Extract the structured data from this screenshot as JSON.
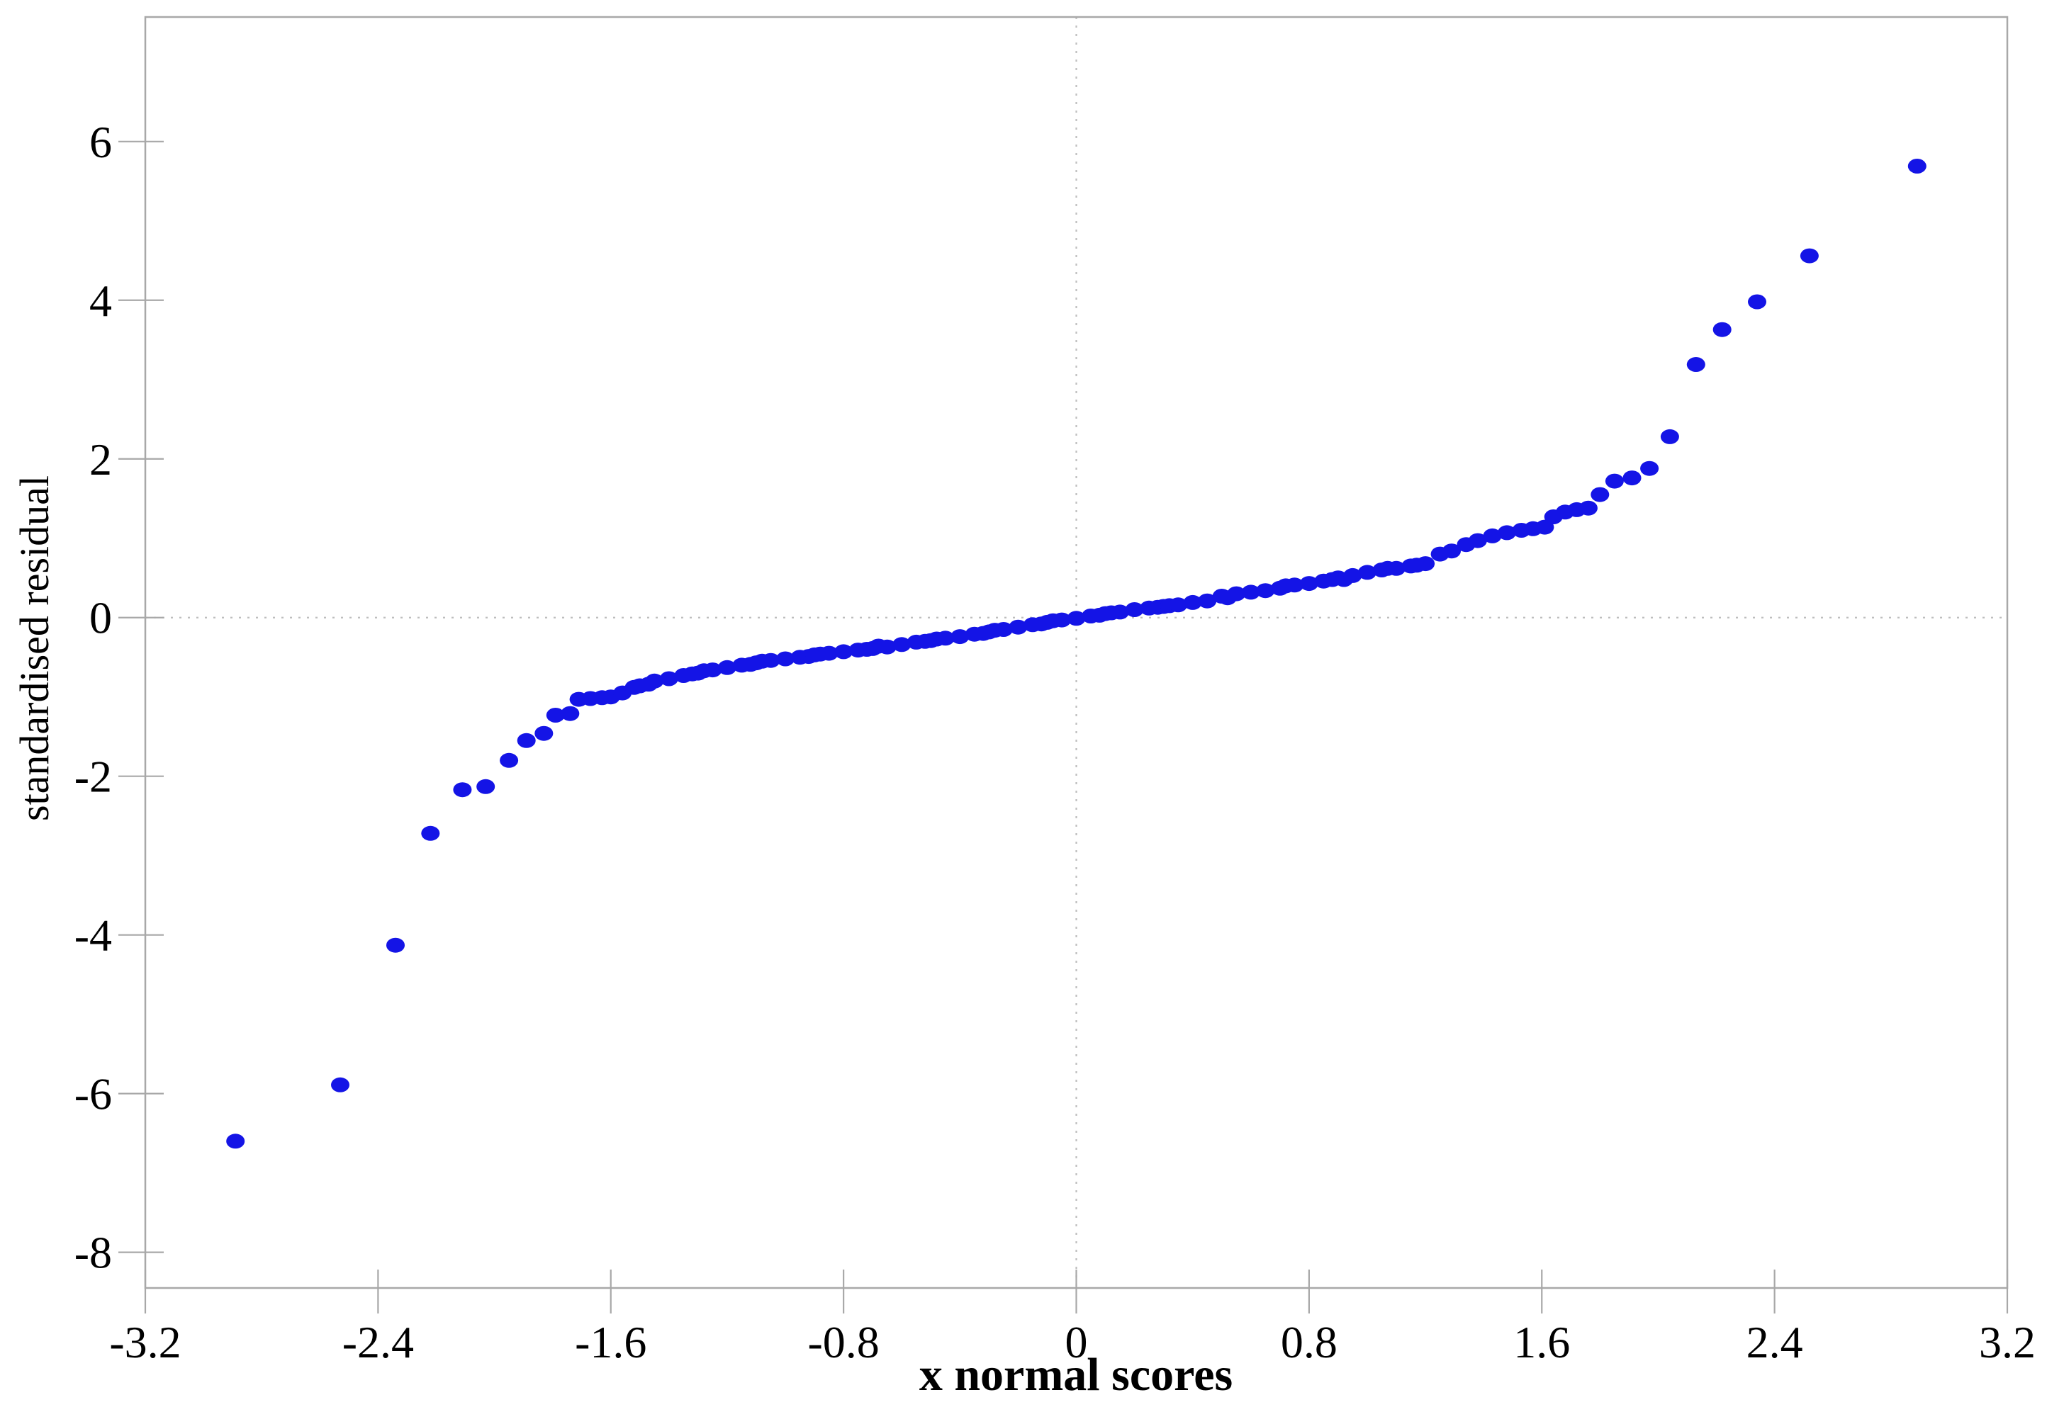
{
  "figure": {
    "background": "#ffffff"
  },
  "chart_data": {
    "type": "scatter",
    "title": "",
    "xlabel": "x normal scores",
    "ylabel": "standardised residual",
    "xlim": [
      -3.2,
      3.2
    ],
    "ylim": [
      -8.45,
      7.57
    ],
    "x_tick_values": [
      -3.2,
      -2.4,
      -1.6,
      -0.8,
      0,
      0.8,
      1.6,
      2.4,
      3.2
    ],
    "x_tick_labels": [
      "-3.2",
      "-2.4",
      "-1.6",
      "-0.8",
      "0",
      "0.8",
      "1.6",
      "2.4",
      "3.2"
    ],
    "y_tick_values": [
      -8,
      -6,
      -4,
      -2,
      0,
      2,
      4,
      6
    ],
    "y_tick_labels": [
      "-8",
      "-6",
      "-4",
      "-2",
      "0",
      "2",
      "4",
      "6"
    ],
    "zero_lines": {
      "x": 0,
      "y": 0
    },
    "grid": false,
    "legend": null,
    "marker": {
      "shape": "ellipse",
      "color": "#1414e6",
      "rx": 13,
      "ry": 10.5
    },
    "axis_color": "#a8a8a8",
    "zero_line_color": "#bdbdbd",
    "label_color": "#000000",
    "points": [
      [
        -2.89,
        -6.6
      ],
      [
        -2.53,
        -5.89
      ],
      [
        -2.34,
        -4.13
      ],
      [
        -2.22,
        -2.72
      ],
      [
        -2.11,
        -2.17
      ],
      [
        -2.03,
        -2.13
      ],
      [
        -1.95,
        -1.8
      ],
      [
        -1.89,
        -1.55
      ],
      [
        -1.83,
        -1.46
      ],
      [
        -1.79,
        -1.23
      ],
      [
        -1.74,
        -1.21
      ],
      [
        -1.71,
        -1.03
      ],
      [
        -1.67,
        -1.02
      ],
      [
        -1.63,
        -1.01
      ],
      [
        -1.6,
        -1.0
      ],
      [
        -1.56,
        -0.95
      ],
      [
        -1.52,
        -0.88
      ],
      [
        -1.5,
        -0.86
      ],
      [
        -1.47,
        -0.84
      ],
      [
        -1.45,
        -0.8
      ],
      [
        -1.4,
        -0.77
      ],
      [
        -1.35,
        -0.73
      ],
      [
        -1.32,
        -0.71
      ],
      [
        -1.3,
        -0.7
      ],
      [
        -1.28,
        -0.67
      ],
      [
        -1.25,
        -0.66
      ],
      [
        -1.2,
        -0.63
      ],
      [
        -1.15,
        -0.6
      ],
      [
        -1.12,
        -0.59
      ],
      [
        -1.1,
        -0.57
      ],
      [
        -1.08,
        -0.55
      ],
      [
        -1.05,
        -0.54
      ],
      [
        -1.0,
        -0.52
      ],
      [
        -0.95,
        -0.5
      ],
      [
        -0.92,
        -0.49
      ],
      [
        -0.9,
        -0.47
      ],
      [
        -0.88,
        -0.46
      ],
      [
        -0.85,
        -0.45
      ],
      [
        -0.8,
        -0.43
      ],
      [
        -0.75,
        -0.41
      ],
      [
        -0.72,
        -0.4
      ],
      [
        -0.7,
        -0.39
      ],
      [
        -0.68,
        -0.36
      ],
      [
        -0.65,
        -0.37
      ],
      [
        -0.6,
        -0.34
      ],
      [
        -0.55,
        -0.31
      ],
      [
        -0.52,
        -0.3
      ],
      [
        -0.5,
        -0.29
      ],
      [
        -0.48,
        -0.27
      ],
      [
        -0.45,
        -0.26
      ],
      [
        -0.4,
        -0.24
      ],
      [
        -0.35,
        -0.21
      ],
      [
        -0.32,
        -0.2
      ],
      [
        -0.3,
        -0.18
      ],
      [
        -0.28,
        -0.16
      ],
      [
        -0.25,
        -0.15
      ],
      [
        -0.2,
        -0.12
      ],
      [
        -0.15,
        -0.09
      ],
      [
        -0.12,
        -0.08
      ],
      [
        -0.1,
        -0.06
      ],
      [
        -0.08,
        -0.04
      ],
      [
        -0.05,
        -0.03
      ],
      [
        0.0,
        -0.01
      ],
      [
        0.05,
        0.02
      ],
      [
        0.08,
        0.03
      ],
      [
        0.1,
        0.05
      ],
      [
        0.12,
        0.06
      ],
      [
        0.15,
        0.07
      ],
      [
        0.2,
        0.1
      ],
      [
        0.25,
        0.12
      ],
      [
        0.28,
        0.13
      ],
      [
        0.3,
        0.14
      ],
      [
        0.32,
        0.15
      ],
      [
        0.35,
        0.16
      ],
      [
        0.4,
        0.19
      ],
      [
        0.45,
        0.21
      ],
      [
        0.5,
        0.27
      ],
      [
        0.52,
        0.25
      ],
      [
        0.55,
        0.3
      ],
      [
        0.6,
        0.32
      ],
      [
        0.65,
        0.34
      ],
      [
        0.7,
        0.37
      ],
      [
        0.72,
        0.4
      ],
      [
        0.75,
        0.41
      ],
      [
        0.8,
        0.43
      ],
      [
        0.85,
        0.46
      ],
      [
        0.88,
        0.48
      ],
      [
        0.9,
        0.5
      ],
      [
        0.92,
        0.48
      ],
      [
        0.95,
        0.53
      ],
      [
        1.0,
        0.57
      ],
      [
        1.05,
        0.6
      ],
      [
        1.07,
        0.62
      ],
      [
        1.1,
        0.62
      ],
      [
        1.15,
        0.65
      ],
      [
        1.17,
        0.66
      ],
      [
        1.2,
        0.68
      ],
      [
        1.25,
        0.8
      ],
      [
        1.29,
        0.84
      ],
      [
        1.34,
        0.92
      ],
      [
        1.38,
        0.97
      ],
      [
        1.43,
        1.03
      ],
      [
        1.48,
        1.07
      ],
      [
        1.53,
        1.1
      ],
      [
        1.57,
        1.12
      ],
      [
        1.61,
        1.14
      ],
      [
        1.64,
        1.27
      ],
      [
        1.68,
        1.33
      ],
      [
        1.72,
        1.36
      ],
      [
        1.76,
        1.38
      ],
      [
        1.8,
        1.55
      ],
      [
        1.85,
        1.72
      ],
      [
        1.91,
        1.76
      ],
      [
        1.97,
        1.88
      ],
      [
        2.04,
        2.28
      ],
      [
        2.13,
        3.19
      ],
      [
        2.22,
        3.63
      ],
      [
        2.34,
        3.98
      ],
      [
        2.52,
        4.56
      ],
      [
        2.89,
        5.69
      ]
    ]
  }
}
